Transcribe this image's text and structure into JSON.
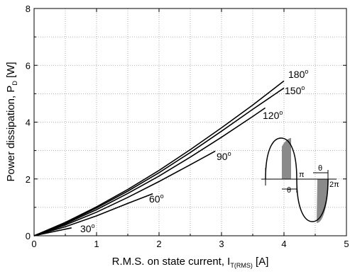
{
  "chart_data": {
    "type": "line",
    "title": "",
    "xlabel": {
      "main": "R.M.S. on state current, I",
      "sub": "T(RMS)",
      "unit": " [A]"
    },
    "ylabel": {
      "main": "Power dissipation, P",
      "sub": "D",
      "unit": " [W]"
    },
    "xlim": [
      0,
      5
    ],
    "ylim": [
      0,
      8
    ],
    "xticks": [
      "0",
      "1",
      "2",
      "3",
      "4",
      "5"
    ],
    "yticks": [
      "0",
      "2",
      "4",
      "6",
      "8"
    ],
    "grid": "dotted",
    "series": [
      {
        "name": "180°",
        "angle": "180",
        "x": [
          0,
          0.5,
          1.0,
          1.5,
          2.0,
          2.5,
          3.0,
          3.5,
          4.0
        ],
        "y": [
          0,
          0.47,
          1.02,
          1.63,
          2.3,
          3.03,
          3.8,
          4.6,
          5.45
        ]
      },
      {
        "name": "150°",
        "angle": "150",
        "x": [
          0,
          0.5,
          1.0,
          1.5,
          2.0,
          2.5,
          3.0,
          3.5,
          4.0
        ],
        "y": [
          0,
          0.45,
          0.98,
          1.57,
          2.22,
          2.93,
          3.68,
          4.45,
          5.2
        ]
      },
      {
        "name": "120°",
        "angle": "120",
        "x": [
          0,
          0.5,
          1.0,
          1.5,
          2.0,
          2.5,
          3.0,
          3.5,
          3.7
        ],
        "y": [
          0,
          0.42,
          0.92,
          1.49,
          2.1,
          2.77,
          3.47,
          4.2,
          4.5
        ]
      },
      {
        "name": "90°",
        "angle": "90",
        "x": [
          0,
          0.5,
          1.0,
          1.5,
          2.0,
          2.5,
          2.9
        ],
        "y": [
          0,
          0.38,
          0.83,
          1.35,
          1.91,
          2.5,
          2.98
        ]
      },
      {
        "name": "60°",
        "angle": "60",
        "x": [
          0,
          0.5,
          1.0,
          1.5,
          1.9
        ],
        "y": [
          0,
          0.32,
          0.7,
          1.14,
          1.48
        ]
      },
      {
        "name": "30°",
        "angle": "30",
        "x": [
          0,
          0.3,
          0.6
        ],
        "y": [
          0,
          0.14,
          0.28
        ]
      }
    ],
    "inset": {
      "theta": "θ",
      "pi": "π",
      "two_pi": "2π"
    }
  }
}
